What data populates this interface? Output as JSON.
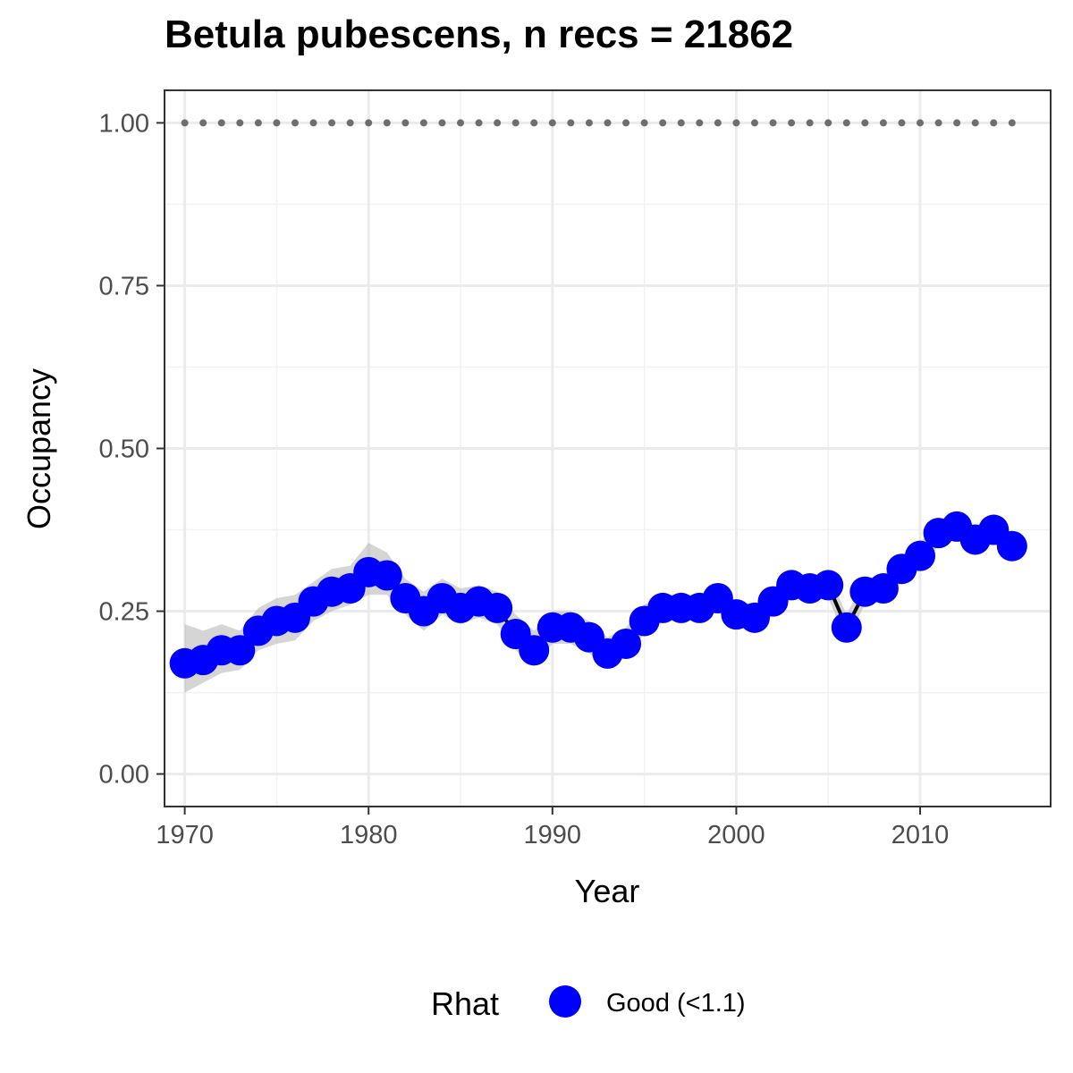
{
  "chart_data": {
    "type": "line",
    "title": "Betula pubescens, n recs = 21862",
    "xlabel": "Year",
    "ylabel": "Occupancy",
    "xlim": [
      1968.9,
      2017.1
    ],
    "ylim": [
      -0.05,
      1.05
    ],
    "x_ticks": [
      1970,
      1980,
      1990,
      2000,
      2010
    ],
    "y_ticks": [
      0.0,
      0.25,
      0.5,
      0.75,
      1.0
    ],
    "y_tick_labels": [
      "0.00",
      "0.25",
      "0.50",
      "0.75",
      "1.00"
    ],
    "grid": true,
    "legend": {
      "title": "Rhat",
      "position": "bottom",
      "items": [
        {
          "label": "Good (<1.1)",
          "color": "#0000ff"
        }
      ]
    },
    "x": [
      1970,
      1971,
      1972,
      1973,
      1974,
      1975,
      1976,
      1977,
      1978,
      1979,
      1980,
      1981,
      1982,
      1983,
      1984,
      1985,
      1986,
      1987,
      1988,
      1989,
      1990,
      1991,
      1992,
      1993,
      1994,
      1995,
      1996,
      1997,
      1998,
      1999,
      2000,
      2001,
      2002,
      2003,
      2004,
      2005,
      2006,
      2007,
      2008,
      2009,
      2010,
      2011,
      2012,
      2013,
      2014,
      2015
    ],
    "series": [
      {
        "name": "Good (<1.1)",
        "color": "#0000ff",
        "values": [
          0.17,
          0.175,
          0.19,
          0.19,
          0.22,
          0.235,
          0.24,
          0.265,
          0.28,
          0.285,
          0.31,
          0.305,
          0.27,
          0.25,
          0.27,
          0.255,
          0.265,
          0.255,
          0.215,
          0.19,
          0.225,
          0.225,
          0.21,
          0.185,
          0.2,
          0.235,
          0.255,
          0.255,
          0.255,
          0.27,
          0.245,
          0.24,
          0.265,
          0.29,
          0.285,
          0.29,
          0.225,
          0.28,
          0.285,
          0.315,
          0.335,
          0.37,
          0.38,
          0.36,
          0.375,
          0.35
        ],
        "lower": [
          0.125,
          0.14,
          0.155,
          0.16,
          0.19,
          0.2,
          0.205,
          0.235,
          0.25,
          0.26,
          0.275,
          0.275,
          0.245,
          0.22,
          0.245,
          0.23,
          0.24,
          0.23,
          0.19,
          0.165,
          0.2,
          0.2,
          0.185,
          0.165,
          0.18,
          0.215,
          0.235,
          0.235,
          0.235,
          0.25,
          0.225,
          0.22,
          0.245,
          0.27,
          0.265,
          0.27,
          0.205,
          0.26,
          0.265,
          0.295,
          0.315,
          0.35,
          0.36,
          0.34,
          0.355,
          0.33
        ],
        "upper": [
          0.23,
          0.22,
          0.23,
          0.22,
          0.255,
          0.27,
          0.275,
          0.295,
          0.315,
          0.32,
          0.355,
          0.34,
          0.3,
          0.28,
          0.3,
          0.285,
          0.29,
          0.28,
          0.245,
          0.22,
          0.25,
          0.25,
          0.235,
          0.21,
          0.225,
          0.26,
          0.275,
          0.275,
          0.275,
          0.29,
          0.265,
          0.26,
          0.285,
          0.31,
          0.305,
          0.31,
          0.245,
          0.3,
          0.305,
          0.335,
          0.355,
          0.39,
          0.4,
          0.38,
          0.395,
          0.37
        ]
      }
    ],
    "reference_line": {
      "y": 1.0,
      "style": "dotted",
      "color": "#6e6e6e"
    }
  }
}
